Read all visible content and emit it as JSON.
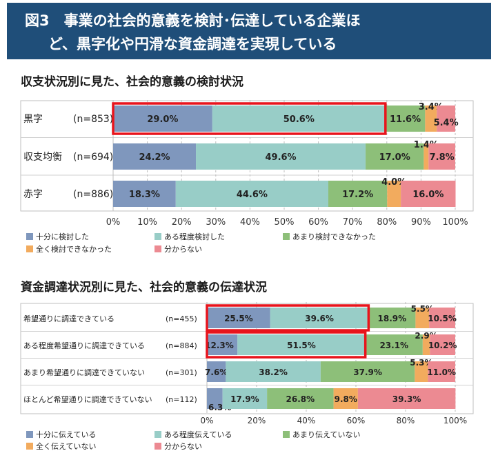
{
  "header": {
    "line1": "図3　事業の社会的意義を検討･伝達している企業ほ",
    "line2": "ど、黒字化や円滑な資金調達を実現している"
  },
  "colors": {
    "banner": "#1f4e79",
    "highlight": "#e8141c",
    "series": [
      "#7f97bd",
      "#98cdc7",
      "#8dbf79",
      "#f2ab5e",
      "#ec8a92"
    ]
  },
  "chart_data": [
    {
      "type": "bar",
      "orientation": "horizontal",
      "stacked": true,
      "title": "収支状況別に見た、社会的意義の検討状況",
      "categories": [
        "黒字",
        "収支均衡",
        "赤字"
      ],
      "n_labels": [
        "(n=853)",
        "(n=694)",
        "(n=886)"
      ],
      "series": [
        {
          "name": "十分に検討した",
          "values": [
            29.0,
            24.2,
            18.3
          ],
          "labels": [
            "29.0%",
            "24.2%",
            "18.3%"
          ]
        },
        {
          "name": "ある程度検討した",
          "values": [
            50.6,
            49.6,
            44.6
          ],
          "labels": [
            "50.6%",
            "49.6%",
            "44.6%"
          ]
        },
        {
          "name": "あまり検討できなかった",
          "values": [
            11.6,
            17.0,
            17.2
          ],
          "labels": [
            "11.6%",
            "17.0%",
            "17.2%"
          ]
        },
        {
          "name": "全く検討できなかった",
          "values": [
            3.4,
            1.4,
            4.0
          ],
          "labels": [
            "3.4%",
            "1.4%",
            "4.0%"
          ]
        },
        {
          "name": "分からない",
          "values": [
            5.4,
            7.8,
            16.0
          ],
          "labels": [
            "5.4%",
            "7.8%",
            "16.0%"
          ]
        }
      ],
      "xticks": [
        "0%",
        "10%",
        "20%",
        "30%",
        "40%",
        "50%",
        "60%",
        "70%",
        "80%",
        "90%",
        "100%"
      ],
      "xlim": [
        0,
        100
      ],
      "grid": true,
      "legend": "bottom",
      "highlight": {
        "row": 0,
        "from": 0,
        "to": 79.6
      }
    },
    {
      "type": "bar",
      "orientation": "horizontal",
      "stacked": true,
      "title": "資金調達状況別に見た、社会的意義の伝達状況",
      "categories": [
        "希望通りに調達できている",
        "ある程度希望通りに調達できている",
        "あまり希望通りに調達できていない",
        "ほとんど希望通りに調達できていない"
      ],
      "n_labels": [
        "(n=455)",
        "(n=884)",
        "(n=301)",
        "(n=112)"
      ],
      "series": [
        {
          "name": "十分に伝えている",
          "values": [
            25.5,
            12.3,
            7.6,
            6.3
          ],
          "labels": [
            "25.5%",
            "12.3%",
            "7.6%",
            "6.3%"
          ]
        },
        {
          "name": "ある程度伝えている",
          "values": [
            39.6,
            51.5,
            38.2,
            17.9
          ],
          "labels": [
            "39.6%",
            "51.5%",
            "38.2%",
            "17.9%"
          ]
        },
        {
          "name": "あまり伝えていない",
          "values": [
            18.9,
            23.1,
            37.9,
            26.8
          ],
          "labels": [
            "18.9%",
            "23.1%",
            "37.9%",
            "26.8%"
          ]
        },
        {
          "name": "全く伝えていない",
          "values": [
            5.5,
            2.9,
            5.3,
            9.8
          ],
          "labels": [
            "5.5%",
            "2.9%",
            "5.3%",
            "9.8%"
          ]
        },
        {
          "name": "分からない",
          "values": [
            10.5,
            10.2,
            11.0,
            39.3
          ],
          "labels": [
            "10.5%",
            "10.2%",
            "11.0%",
            "39.3%"
          ]
        }
      ],
      "xticks": [
        "0%",
        "20%",
        "40%",
        "60%",
        "80%",
        "100%"
      ],
      "xlim": [
        0,
        100
      ],
      "grid": true,
      "legend": "bottom",
      "highlight": [
        {
          "row": 0,
          "from": 0,
          "to": 65.1
        },
        {
          "row": 1,
          "from": 0,
          "to": 63.8
        }
      ]
    }
  ]
}
